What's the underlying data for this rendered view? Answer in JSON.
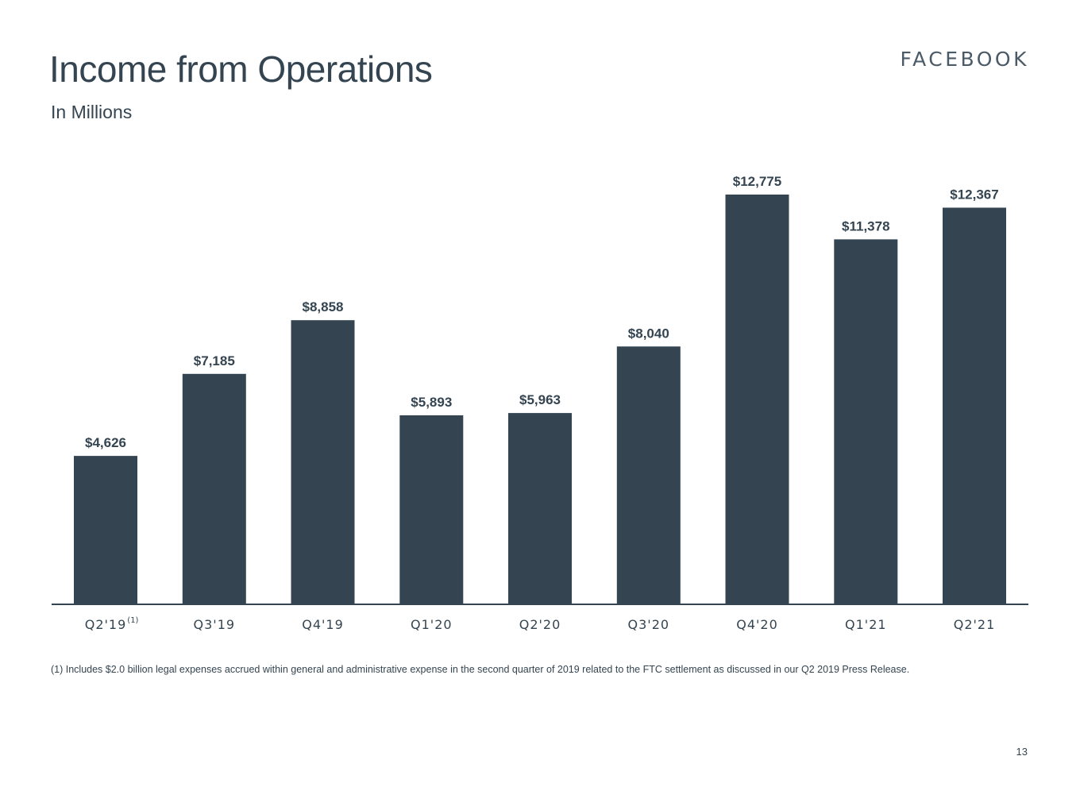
{
  "slide": {
    "title": "Income from Operations",
    "subtitle": "In Millions",
    "brand": "FACEBOOK",
    "footnote": "(1) Includes $2.0 billion legal expenses accrued within general and administrative expense in the second quarter of 2019 related to the FTC settlement as discussed in our Q2 2019 Press Release.",
    "page_number": "13"
  },
  "colors": {
    "bar": "#344551",
    "text": "#344551",
    "axis": "#344551"
  },
  "chart_data": {
    "type": "bar",
    "categories": [
      "Q2'19",
      "Q3'19",
      "Q4'19",
      "Q1'20",
      "Q2'20",
      "Q3'20",
      "Q4'20",
      "Q1'21",
      "Q2'21"
    ],
    "category_superscripts": [
      "(1)",
      "",
      "",
      "",
      "",
      "",
      "",
      "",
      ""
    ],
    "values": [
      4626,
      7185,
      8858,
      5893,
      5963,
      8040,
      12775,
      11378,
      12367
    ],
    "data_labels": [
      "$4,626",
      "$7,185",
      "$8,858",
      "$5,893",
      "$5,963",
      "$8,040",
      "$12,775",
      "$11,378",
      "$12,367"
    ],
    "ylim": [
      0,
      12775
    ],
    "grid": false,
    "legend": "none"
  }
}
